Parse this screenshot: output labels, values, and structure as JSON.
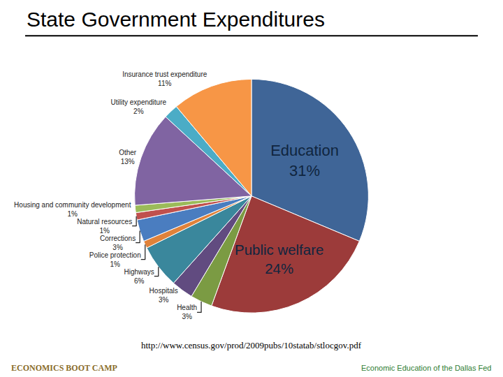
{
  "chart_data": {
    "type": "pie",
    "title": "State Government Expenditures",
    "categories": [
      "Education",
      "Public welfare",
      "Health",
      "Hospitals",
      "Highways",
      "Police protection",
      "Corrections",
      "Natural resources",
      "Housing and community development",
      "Other",
      "Utility expenditure",
      "Insurance trust expenditure"
    ],
    "values": [
      31,
      24,
      3,
      3,
      6,
      1,
      3,
      1,
      1,
      13,
      2,
      11
    ],
    "value_labels": [
      "31%",
      "24%",
      "3%",
      "3%",
      "6%",
      "1%",
      "3%",
      "1%",
      "1%",
      "13%",
      "2%",
      "11%"
    ],
    "data_labels": true,
    "colors": [
      "#3f6597",
      "#9c3b3a",
      "#7b9b43",
      "#614b80",
      "#3a879c",
      "#e0823a",
      "#4a7dc0",
      "#c0504d",
      "#9bbb59",
      "#8064a2",
      "#4bacc6",
      "#f79646"
    ],
    "annotations": [
      "http://www.census.gov/prod/2009pubs/10statab/stlocgov.pdf",
      "ECONOMICS BOOT CAMP",
      "Economic Education of the Dallas Fed"
    ]
  }
}
